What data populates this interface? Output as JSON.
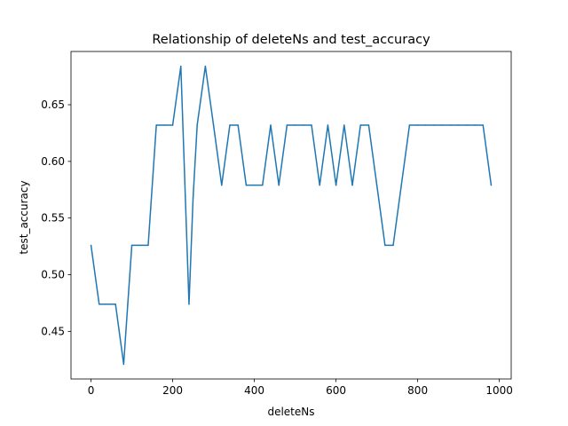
{
  "chart_data": {
    "type": "line",
    "title": "Relationship of deleteNs and test_accuracy",
    "xlabel": "deleteNs",
    "ylabel": "test_accuracy",
    "xlim": [
      -49,
      1029
    ],
    "ylim": [
      0.408,
      0.697
    ],
    "xticks": [
      0,
      200,
      400,
      600,
      800,
      1000
    ],
    "xtick_labels": [
      "0",
      "200",
      "400",
      "600",
      "800",
      "1000"
    ],
    "yticks": [
      0.45,
      0.5,
      0.55,
      0.6,
      0.65
    ],
    "ytick_labels": [
      "0.45",
      "0.50",
      "0.55",
      "0.60",
      "0.65"
    ],
    "grid": false,
    "line_color": "#1f77b4",
    "series": [
      {
        "x": [
          0,
          20,
          40,
          60,
          80,
          90,
          100,
          120,
          140,
          160,
          180,
          200,
          220,
          240,
          250,
          260,
          280,
          300,
          320,
          340,
          360,
          380,
          400,
          420,
          440,
          460,
          480,
          500,
          520,
          540,
          560,
          580,
          600,
          620,
          640,
          660,
          680,
          700,
          720,
          740,
          760,
          780,
          800,
          820,
          840,
          860,
          880,
          900,
          920,
          940,
          960,
          980
        ],
        "y": [
          0.526,
          0.474,
          0.474,
          0.474,
          0.421,
          0.474,
          0.526,
          0.526,
          0.526,
          0.632,
          0.632,
          0.632,
          0.684,
          0.474,
          0.568,
          0.632,
          0.684,
          0.632,
          0.579,
          0.632,
          0.632,
          0.579,
          0.579,
          0.579,
          0.632,
          0.579,
          0.632,
          0.632,
          0.632,
          0.632,
          0.579,
          0.632,
          0.579,
          0.632,
          0.579,
          0.632,
          0.632,
          0.579,
          0.526,
          0.526,
          0.579,
          0.632,
          0.632,
          0.632,
          0.632,
          0.632,
          0.632,
          0.632,
          0.632,
          0.632,
          0.632,
          0.579
        ]
      }
    ]
  }
}
